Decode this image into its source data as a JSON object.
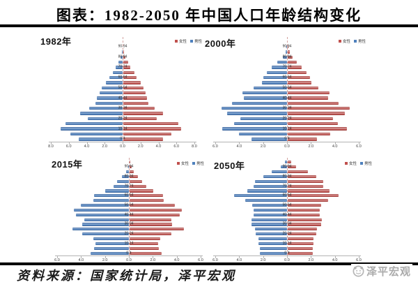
{
  "page": {
    "title": "图表：1982-2050 年中国人口年龄结构变化",
    "source_note": "资料来源：国家统计局，泽平宏观",
    "logo_text": "泽平宏观"
  },
  "legend": {
    "female_label": "女性",
    "male_label": "男性"
  },
  "colors": {
    "female": "#C0504D",
    "male": "#4F81BD",
    "title_rule": "#000000",
    "axis": "#B3B3B3"
  },
  "chart_data": [
    {
      "type": "bar",
      "subtype": "population_pyramid",
      "title": "1982年",
      "xlim": [
        -8,
        8
      ],
      "xtick_labels": [
        "8.0",
        "6.0",
        "4.0",
        "2.0",
        "0.0",
        "2.0",
        "4.0",
        "6.0",
        "8.0"
      ],
      "categories": [
        "0-4",
        "5-9",
        "10-14",
        "15-19",
        "20-24",
        "25-29",
        "30-34",
        "35-39",
        "40-44",
        "45-49",
        "50-54",
        "55-59",
        "60-64",
        "65-69",
        "70-74",
        "75-79",
        "80-84",
        "85-89",
        "90-94",
        "95+"
      ],
      "labeled_categories": [
        "0-4",
        "10-14",
        "20-24",
        "30-34",
        "40-44",
        "50-54",
        "60-64",
        "70-74",
        "80-84",
        "90-94"
      ],
      "series": [
        {
          "name": "男性",
          "side": "left",
          "color": "#4F81BD",
          "values": [
            4.9,
            5.8,
            6.9,
            6.4,
            3.9,
            4.7,
            3.7,
            3.0,
            2.9,
            2.6,
            2.3,
            1.9,
            1.45,
            1.1,
            0.75,
            0.45,
            0.2,
            0.07,
            0.02,
            0.01
          ]
        },
        {
          "name": "女性",
          "side": "right",
          "color": "#C0504D",
          "values": [
            4.5,
            5.4,
            6.5,
            6.2,
            3.8,
            4.5,
            3.5,
            2.8,
            2.7,
            2.5,
            2.3,
            2.0,
            1.5,
            1.25,
            0.85,
            0.55,
            0.3,
            0.15,
            0.06,
            0.02
          ]
        }
      ]
    },
    {
      "type": "bar",
      "subtype": "population_pyramid",
      "title": "2000年",
      "xlim": [
        -6,
        6
      ],
      "xtick_labels": [
        "6.0",
        "4.0",
        "2.0",
        "0.0",
        "2.0",
        "4.0",
        "6.0"
      ],
      "categories": [
        "0-4",
        "5-9",
        "10-14",
        "15-19",
        "20-24",
        "25-29",
        "30-34",
        "35-39",
        "40-44",
        "45-49",
        "50-54",
        "55-59",
        "60-64",
        "65-69",
        "70-74",
        "75-79",
        "80-84",
        "85-89",
        "90-94",
        "95+"
      ],
      "labeled_categories": [
        "0-4",
        "10-14",
        "20-24",
        "30-34",
        "40-44",
        "50-54",
        "60-64",
        "70-74",
        "80-84",
        "90-94"
      ],
      "series": [
        {
          "name": "男性",
          "side": "left",
          "color": "#4F81BD",
          "values": [
            3.0,
            4.0,
            5.4,
            4.4,
            3.9,
            5.0,
            5.5,
            4.6,
            3.6,
            3.7,
            2.8,
            2.1,
            2.0,
            1.7,
            1.3,
            0.8,
            0.35,
            0.12,
            0.04,
            0.01
          ]
        },
        {
          "name": "女性",
          "side": "right",
          "color": "#C0504D",
          "values": [
            2.5,
            3.6,
            5.0,
            4.2,
            3.8,
            4.8,
            5.2,
            4.3,
            3.4,
            3.5,
            2.6,
            2.0,
            1.9,
            1.6,
            1.2,
            0.8,
            0.45,
            0.2,
            0.1,
            0.03
          ]
        }
      ]
    },
    {
      "type": "bar",
      "subtype": "population_pyramid",
      "title": "2015年",
      "xlim": [
        -6,
        6
      ],
      "xtick_labels": [
        "6.0",
        "4.0",
        "2.0",
        "0.0",
        "2.0",
        "4.0",
        "6.0"
      ],
      "categories": [
        "0-4",
        "5-9",
        "10-14",
        "15-19",
        "20-24",
        "25-29",
        "30-34",
        "35-39",
        "40-44",
        "45-49",
        "50-54",
        "55-59",
        "60-64",
        "65-69",
        "70-74",
        "75-79",
        "80-84",
        "85-89",
        "90-94",
        "95+"
      ],
      "labeled_categories": [
        "0-4",
        "10-14",
        "20-24",
        "30-34",
        "40-44",
        "50-54",
        "60-64",
        "70-74",
        "80-84",
        "90-94"
      ],
      "series": [
        {
          "name": "男性",
          "side": "left",
          "color": "#4F81BD",
          "values": [
            3.2,
            2.9,
            2.8,
            3.0,
            3.9,
            4.7,
            3.9,
            3.7,
            4.4,
            4.6,
            4.0,
            3.0,
            2.9,
            2.0,
            1.3,
            1.0,
            0.6,
            0.25,
            0.08,
            0.02
          ]
        },
        {
          "name": "女性",
          "side": "right",
          "color": "#C0504D",
          "values": [
            2.7,
            2.5,
            2.4,
            2.6,
            3.5,
            4.6,
            3.6,
            3.5,
            4.2,
            4.4,
            3.8,
            2.9,
            2.8,
            2.0,
            1.4,
            1.1,
            0.75,
            0.4,
            0.18,
            0.06
          ]
        }
      ]
    },
    {
      "type": "bar",
      "subtype": "population_pyramid",
      "title": "2050年",
      "xlim": [
        -6,
        6
      ],
      "xtick_labels": [
        "6.0",
        "4.0",
        "2.0",
        "0.0",
        "2.0",
        "4.0",
        "6.0"
      ],
      "categories": [
        "0-4",
        "5-9",
        "10-14",
        "15-19",
        "20-24",
        "25-29",
        "30-34",
        "35-39",
        "40-44",
        "45-49",
        "50-54",
        "55-59",
        "60-64",
        "65-69",
        "70-74",
        "75-79",
        "80-84",
        "85-89",
        "90-94",
        "95+"
      ],
      "labeled_categories": [
        "0-4",
        "10-14",
        "20-24",
        "30-34",
        "40-44",
        "50-54",
        "60-64",
        "70-74",
        "80-84",
        "90-94"
      ],
      "series": [
        {
          "name": "男性",
          "side": "left",
          "color": "#4F81BD",
          "values": [
            2.3,
            2.3,
            2.4,
            2.4,
            2.6,
            2.7,
            3.0,
            3.0,
            2.8,
            2.8,
            2.9,
            3.5,
            4.4,
            3.3,
            2.8,
            2.7,
            2.0,
            1.3,
            0.5,
            0.15
          ]
        },
        {
          "name": "女性",
          "side": "right",
          "color": "#C0504D",
          "values": [
            2.1,
            2.1,
            2.2,
            2.2,
            2.4,
            2.5,
            2.8,
            2.9,
            2.7,
            2.7,
            2.8,
            3.4,
            4.3,
            3.5,
            3.0,
            3.0,
            2.4,
            1.7,
            0.7,
            0.3
          ]
        }
      ]
    }
  ]
}
